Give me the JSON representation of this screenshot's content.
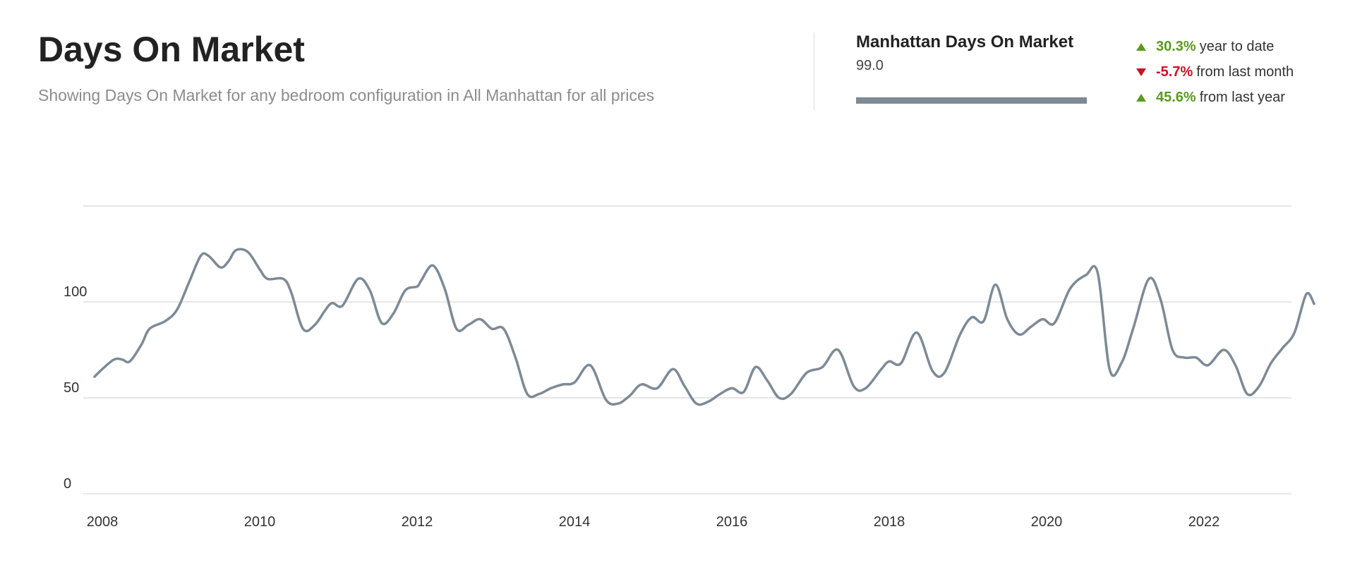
{
  "header": {
    "title": "Days On Market",
    "subtitle": "Showing Days On Market for any bedroom configuration in All Manhattan for all prices"
  },
  "summary": {
    "title": "Manhattan Days On Market",
    "value": "99.0",
    "bar_color": "#7d8a96"
  },
  "stats": [
    {
      "direction": "up",
      "icon": "triangle-up-icon",
      "value": "30.3%",
      "text": "year to date"
    },
    {
      "direction": "down",
      "icon": "triangle-down-icon",
      "value": "-5.7%",
      "text": "from last month"
    },
    {
      "direction": "up",
      "icon": "triangle-up-icon",
      "value": "45.6%",
      "text": "from last year"
    }
  ],
  "colors": {
    "line": "#7d8a96",
    "positive": "#5a9a1e",
    "negative": "#cc1122",
    "grid": "#d8d8d8"
  },
  "chart_data": {
    "type": "line",
    "title": "",
    "xlabel": "",
    "ylabel": "",
    "x_ticks": [
      "2008",
      "2010",
      "2012",
      "2014",
      "2016",
      "2018",
      "2020",
      "2022"
    ],
    "y_ticks": [
      0,
      50,
      100
    ],
    "xlim": [
      2007.9,
      2023.25
    ],
    "ylim": [
      0,
      150
    ],
    "grid": true,
    "legend": "none",
    "series": [
      {
        "name": "",
        "points": [
          [
            2007.9,
            61
          ],
          [
            2008.0,
            65
          ],
          [
            2008.15,
            70
          ],
          [
            2008.25,
            70
          ],
          [
            2008.35,
            69
          ],
          [
            2008.5,
            78
          ],
          [
            2008.6,
            86
          ],
          [
            2008.8,
            90
          ],
          [
            2008.95,
            96
          ],
          [
            2009.1,
            110
          ],
          [
            2009.25,
            124
          ],
          [
            2009.35,
            124
          ],
          [
            2009.5,
            118
          ],
          [
            2009.6,
            121
          ],
          [
            2009.7,
            127
          ],
          [
            2009.85,
            126
          ],
          [
            2010.0,
            117
          ],
          [
            2010.1,
            112
          ],
          [
            2010.3,
            112
          ],
          [
            2010.4,
            105
          ],
          [
            2010.55,
            86
          ],
          [
            2010.7,
            88
          ],
          [
            2010.9,
            99
          ],
          [
            2011.05,
            98
          ],
          [
            2011.25,
            112
          ],
          [
            2011.4,
            106
          ],
          [
            2011.55,
            89
          ],
          [
            2011.7,
            94
          ],
          [
            2011.85,
            106
          ],
          [
            2012.0,
            108
          ],
          [
            2012.05,
            111
          ],
          [
            2012.2,
            119
          ],
          [
            2012.35,
            107
          ],
          [
            2012.5,
            86
          ],
          [
            2012.65,
            88
          ],
          [
            2012.8,
            91
          ],
          [
            2012.95,
            86
          ],
          [
            2013.1,
            86
          ],
          [
            2013.25,
            71
          ],
          [
            2013.4,
            52
          ],
          [
            2013.55,
            52
          ],
          [
            2013.7,
            55
          ],
          [
            2013.85,
            57
          ],
          [
            2014.0,
            58
          ],
          [
            2014.2,
            67
          ],
          [
            2014.4,
            49
          ],
          [
            2014.55,
            47
          ],
          [
            2014.7,
            51
          ],
          [
            2014.85,
            57
          ],
          [
            2015.05,
            55
          ],
          [
            2015.25,
            65
          ],
          [
            2015.4,
            56
          ],
          [
            2015.55,
            47
          ],
          [
            2015.7,
            48
          ],
          [
            2015.85,
            52
          ],
          [
            2016.0,
            55
          ],
          [
            2016.15,
            53
          ],
          [
            2016.3,
            66
          ],
          [
            2016.45,
            59
          ],
          [
            2016.6,
            50
          ],
          [
            2016.75,
            52
          ],
          [
            2016.95,
            63
          ],
          [
            2017.15,
            66
          ],
          [
            2017.35,
            75
          ],
          [
            2017.55,
            56
          ],
          [
            2017.7,
            55
          ],
          [
            2017.9,
            65
          ],
          [
            2018.0,
            69
          ],
          [
            2018.15,
            68
          ],
          [
            2018.35,
            84
          ],
          [
            2018.55,
            64
          ],
          [
            2018.7,
            63
          ],
          [
            2018.9,
            83
          ],
          [
            2019.05,
            92
          ],
          [
            2019.2,
            90
          ],
          [
            2019.35,
            109
          ],
          [
            2019.5,
            91
          ],
          [
            2019.65,
            83
          ],
          [
            2019.8,
            87
          ],
          [
            2019.95,
            91
          ],
          [
            2020.1,
            89
          ],
          [
            2020.3,
            107
          ],
          [
            2020.5,
            114
          ],
          [
            2020.65,
            115
          ],
          [
            2020.8,
            65
          ],
          [
            2020.95,
            68
          ],
          [
            2021.1,
            86
          ],
          [
            2021.3,
            112
          ],
          [
            2021.45,
            101
          ],
          [
            2021.6,
            75
          ],
          [
            2021.75,
            71
          ],
          [
            2021.9,
            71
          ],
          [
            2022.05,
            67
          ],
          [
            2022.25,
            75
          ],
          [
            2022.4,
            67
          ],
          [
            2022.55,
            52
          ],
          [
            2022.7,
            56
          ],
          [
            2022.85,
            68
          ],
          [
            2023.0,
            76
          ],
          [
            2023.15,
            84
          ],
          [
            2023.3,
            104
          ],
          [
            2023.4,
            99
          ]
        ]
      }
    ]
  }
}
